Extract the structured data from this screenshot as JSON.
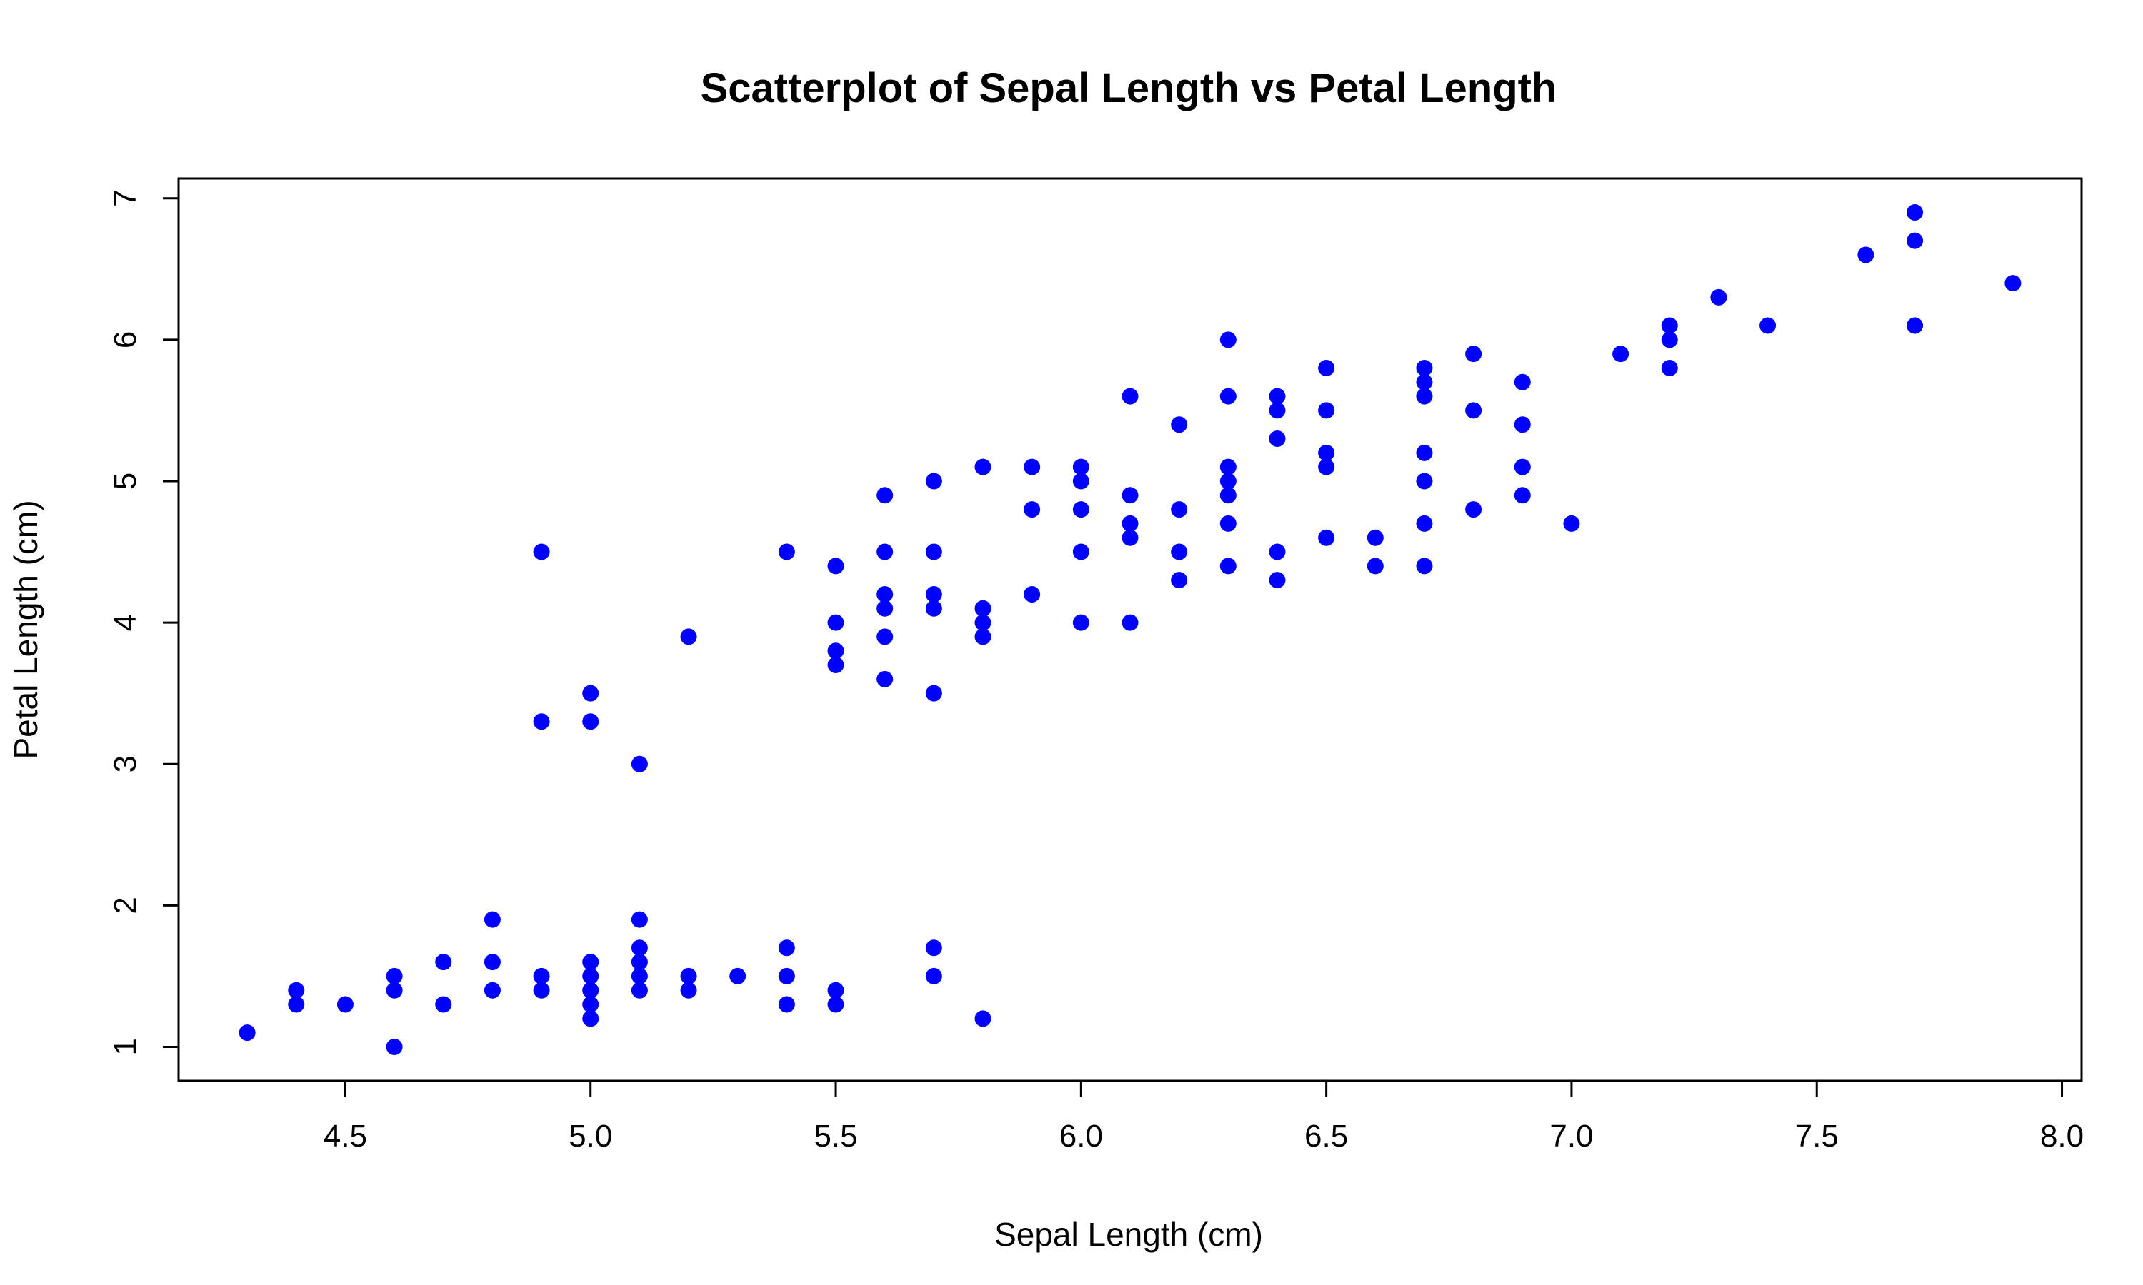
{
  "chart_data": {
    "type": "scatter",
    "title": "Scatterplot of Sepal Length vs Petal Length",
    "xlabel": "Sepal Length (cm)",
    "ylabel": "Petal Length (cm)",
    "xlim": [
      4.16,
      8.04
    ],
    "ylim": [
      0.76,
      7.14
    ],
    "xticks": [
      4.5,
      5.0,
      5.5,
      6.0,
      6.5,
      7.0,
      7.5,
      8.0
    ],
    "xtick_labels": [
      "4.5",
      "5.0",
      "5.5",
      "6.0",
      "6.5",
      "7.0",
      "7.5",
      "8.0"
    ],
    "yticks": [
      1,
      2,
      3,
      4,
      5,
      6,
      7
    ],
    "ytick_labels": [
      "1",
      "2",
      "3",
      "4",
      "5",
      "6",
      "7"
    ],
    "grid": false,
    "point_color": "#0000ff",
    "points": [
      [
        4.3,
        1.1
      ],
      [
        4.4,
        1.3
      ],
      [
        4.4,
        1.4
      ],
      [
        4.5,
        1.3
      ],
      [
        4.6,
        1.0
      ],
      [
        4.6,
        1.4
      ],
      [
        4.6,
        1.5
      ],
      [
        4.7,
        1.3
      ],
      [
        4.7,
        1.6
      ],
      [
        4.8,
        1.4
      ],
      [
        4.8,
        1.6
      ],
      [
        4.8,
        1.9
      ],
      [
        4.9,
        1.4
      ],
      [
        4.9,
        1.5
      ],
      [
        4.9,
        3.3
      ],
      [
        4.9,
        4.5
      ],
      [
        5.0,
        1.2
      ],
      [
        5.0,
        1.3
      ],
      [
        5.0,
        1.4
      ],
      [
        5.0,
        1.5
      ],
      [
        5.0,
        1.6
      ],
      [
        5.0,
        3.3
      ],
      [
        5.0,
        3.5
      ],
      [
        5.1,
        1.4
      ],
      [
        5.1,
        1.5
      ],
      [
        5.1,
        1.6
      ],
      [
        5.1,
        1.7
      ],
      [
        5.1,
        1.9
      ],
      [
        5.1,
        3.0
      ],
      [
        5.2,
        1.4
      ],
      [
        5.2,
        1.5
      ],
      [
        5.2,
        3.9
      ],
      [
        5.3,
        1.5
      ],
      [
        5.4,
        1.3
      ],
      [
        5.4,
        1.5
      ],
      [
        5.4,
        1.7
      ],
      [
        5.4,
        4.5
      ],
      [
        5.5,
        1.3
      ],
      [
        5.5,
        1.4
      ],
      [
        5.5,
        3.7
      ],
      [
        5.5,
        3.8
      ],
      [
        5.5,
        4.0
      ],
      [
        5.5,
        4.4
      ],
      [
        5.6,
        3.6
      ],
      [
        5.6,
        3.9
      ],
      [
        5.6,
        4.1
      ],
      [
        5.6,
        4.2
      ],
      [
        5.6,
        4.5
      ],
      [
        5.6,
        4.9
      ],
      [
        5.7,
        1.5
      ],
      [
        5.7,
        1.7
      ],
      [
        5.7,
        3.5
      ],
      [
        5.7,
        4.1
      ],
      [
        5.7,
        4.2
      ],
      [
        5.7,
        4.5
      ],
      [
        5.7,
        5.0
      ],
      [
        5.8,
        1.2
      ],
      [
        5.8,
        3.9
      ],
      [
        5.8,
        4.0
      ],
      [
        5.8,
        4.1
      ],
      [
        5.8,
        5.1
      ],
      [
        5.9,
        4.2
      ],
      [
        5.9,
        4.8
      ],
      [
        5.9,
        5.1
      ],
      [
        6.0,
        4.0
      ],
      [
        6.0,
        4.5
      ],
      [
        6.0,
        4.8
      ],
      [
        6.0,
        5.0
      ],
      [
        6.0,
        5.1
      ],
      [
        6.1,
        4.0
      ],
      [
        6.1,
        4.6
      ],
      [
        6.1,
        4.7
      ],
      [
        6.1,
        4.9
      ],
      [
        6.1,
        5.6
      ],
      [
        6.2,
        4.3
      ],
      [
        6.2,
        4.5
      ],
      [
        6.2,
        4.8
      ],
      [
        6.2,
        5.4
      ],
      [
        6.3,
        4.4
      ],
      [
        6.3,
        4.7
      ],
      [
        6.3,
        4.9
      ],
      [
        6.3,
        5.0
      ],
      [
        6.3,
        5.1
      ],
      [
        6.3,
        5.6
      ],
      [
        6.3,
        6.0
      ],
      [
        6.4,
        4.3
      ],
      [
        6.4,
        4.5
      ],
      [
        6.4,
        5.3
      ],
      [
        6.4,
        5.5
      ],
      [
        6.4,
        5.6
      ],
      [
        6.5,
        4.6
      ],
      [
        6.5,
        5.1
      ],
      [
        6.5,
        5.2
      ],
      [
        6.5,
        5.5
      ],
      [
        6.5,
        5.8
      ],
      [
        6.6,
        4.4
      ],
      [
        6.6,
        4.6
      ],
      [
        6.7,
        4.4
      ],
      [
        6.7,
        4.7
      ],
      [
        6.7,
        5.0
      ],
      [
        6.7,
        5.2
      ],
      [
        6.7,
        5.6
      ],
      [
        6.7,
        5.7
      ],
      [
        6.7,
        5.8
      ],
      [
        6.8,
        4.8
      ],
      [
        6.8,
        5.5
      ],
      [
        6.8,
        5.9
      ],
      [
        6.9,
        4.9
      ],
      [
        6.9,
        5.1
      ],
      [
        6.9,
        5.4
      ],
      [
        6.9,
        5.7
      ],
      [
        7.0,
        4.7
      ],
      [
        7.1,
        5.9
      ],
      [
        7.2,
        5.8
      ],
      [
        7.2,
        6.0
      ],
      [
        7.2,
        6.1
      ],
      [
        7.3,
        6.3
      ],
      [
        7.4,
        6.1
      ],
      [
        7.6,
        6.6
      ],
      [
        7.7,
        6.1
      ],
      [
        7.7,
        6.7
      ],
      [
        7.7,
        6.9
      ],
      [
        7.9,
        6.4
      ]
    ]
  }
}
